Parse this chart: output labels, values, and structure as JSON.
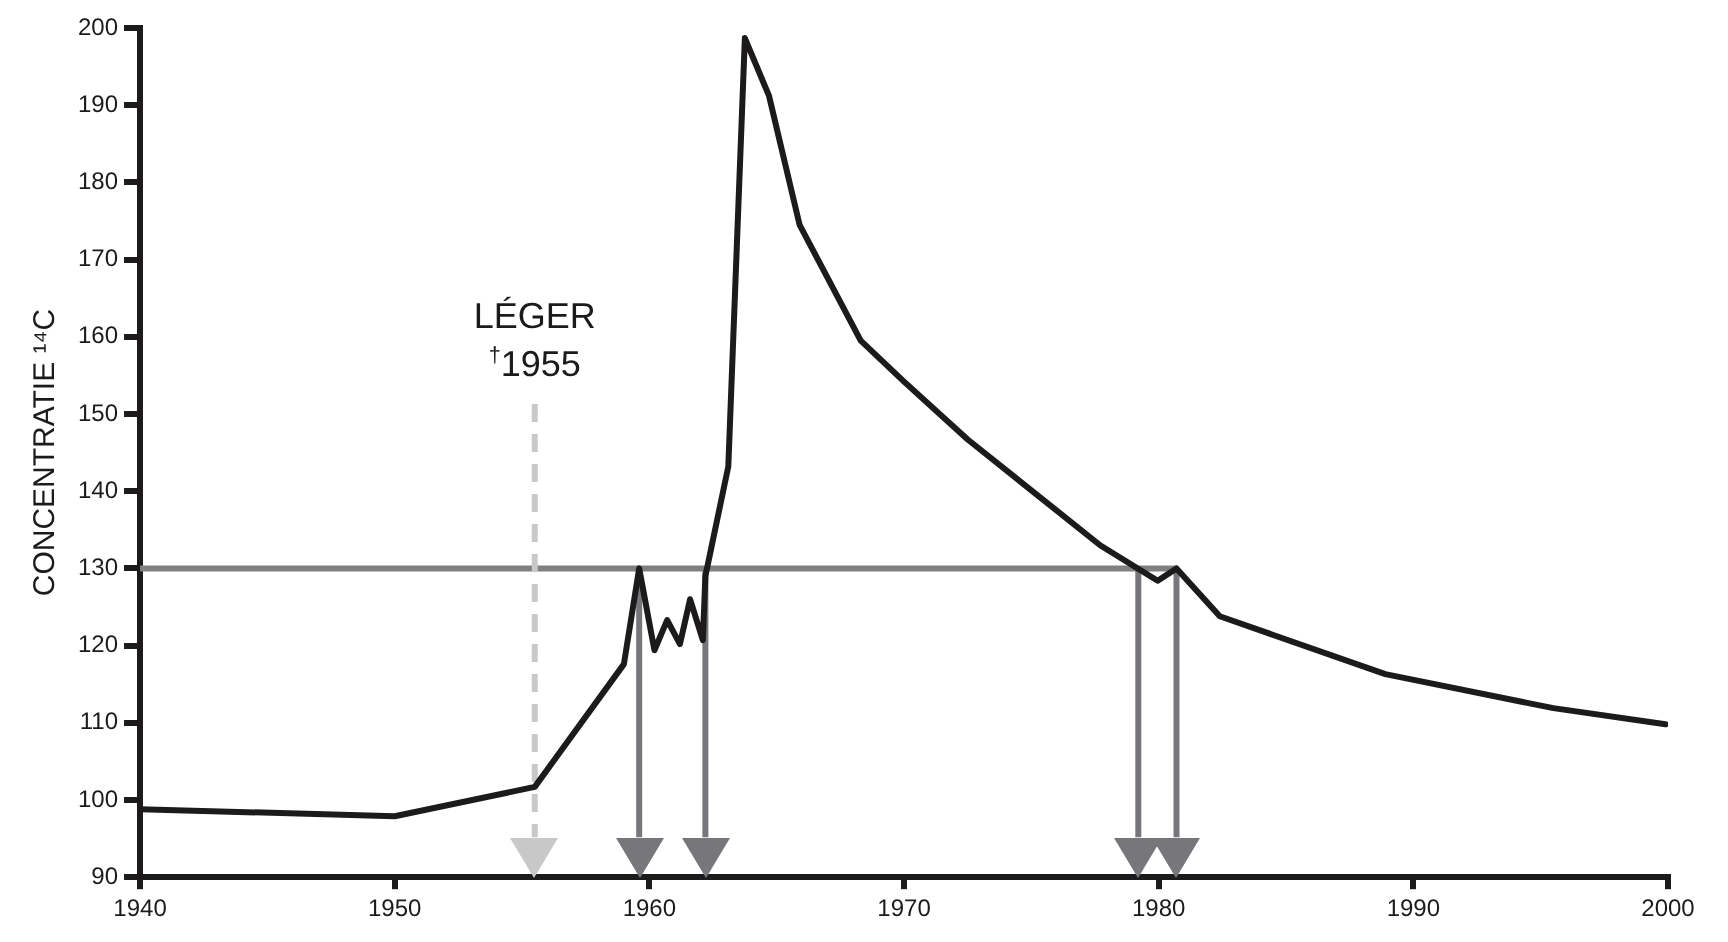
{
  "chart_data": {
    "type": "line",
    "ylabel": "CONCENTRATIE ¹⁴C",
    "xlim": [
      1940,
      2000
    ],
    "xticks": [
      1940,
      1950,
      1960,
      1970,
      1980,
      1990,
      2000
    ],
    "ylim": [
      90,
      200
    ],
    "yticks": [
      90,
      100,
      110,
      120,
      130,
      140,
      150,
      160,
      170,
      180,
      190,
      200
    ],
    "grid": false,
    "legend": false,
    "marker": "none",
    "line_style": "solid",
    "series": [
      {
        "color": "#1c1a1b",
        "x": [
          1940,
          1950,
          1955.5,
          1959.0,
          1959.6,
          1960.2,
          1960.7,
          1961.2,
          1961.6,
          1962.1,
          1962.2,
          1963.1,
          1963.75,
          1964.7,
          1965.9,
          1968.3,
          1970.0,
          1972.5,
          1977.7,
          1979.96,
          1980.7,
          1982.4,
          1988.9,
          1995.5,
          1999.9
        ],
        "values": [
          98.8,
          97.9,
          101.7,
          117.6,
          130,
          119.4,
          123.3,
          120.2,
          126,
          120.7,
          129,
          143.2,
          198.7,
          191.2,
          174.5,
          159.5,
          154.2,
          146.7,
          133,
          128.4,
          130,
          123.8,
          116.3,
          111.9,
          109.8
        ]
      }
    ],
    "ref_lines": [
      {
        "axis": "y",
        "value": 130,
        "color": "#808080",
        "line_style": "solid"
      },
      {
        "axis": "x",
        "value": 1955.5,
        "label": "LÉGER\n$^{†}$1955",
        "color": "#c8c8c8",
        "line_style": "dashed"
      },
      {
        "axis": "x",
        "value": 1959.6,
        "color": "#77777b",
        "line_style": "solid"
      },
      {
        "axis": "x",
        "value": 1962.2,
        "color": "#77777b",
        "line_style": "solid"
      },
      {
        "axis": "x",
        "value": 1979.2,
        "color": "#77777b",
        "line_style": "solid"
      },
      {
        "axis": "x",
        "value": 1980.7,
        "color": "#77777b",
        "line_style": "solid"
      }
    ]
  }
}
